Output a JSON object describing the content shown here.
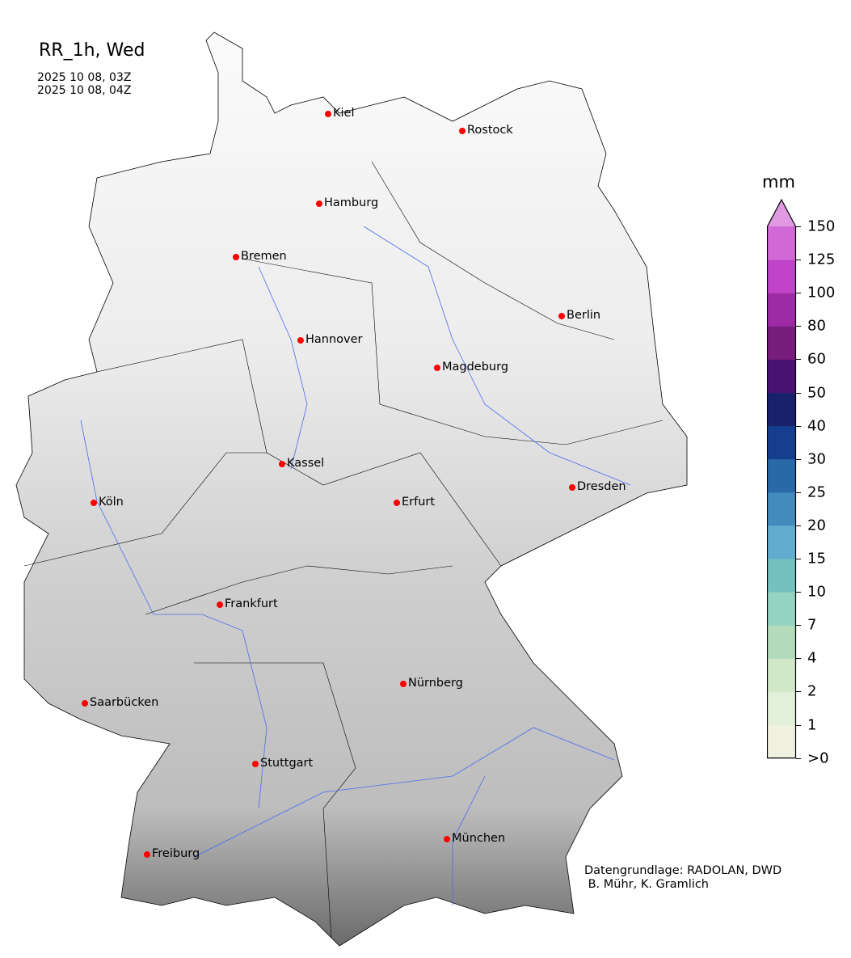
{
  "title": "RR_1h, Wed",
  "dates": [
    "2025 10 08, 03Z",
    "2025 10 08, 04Z"
  ],
  "colorbar": {
    "unit": "mm",
    "ticks": [
      ">0",
      "1",
      "2",
      "4",
      "7",
      "10",
      "15",
      "20",
      "25",
      "30",
      "40",
      "50",
      "60",
      "80",
      "100",
      "125",
      "150"
    ],
    "colors": [
      "#f0f0e0",
      "#e2efd9",
      "#d0e8c8",
      "#b2dbbb",
      "#96d2c0",
      "#73c0c0",
      "#62adcf",
      "#448bbd",
      "#2a69a8",
      "#163e8e",
      "#19216a",
      "#481272",
      "#771e7d",
      "#9e2aa6",
      "#c043c8",
      "#d068d6"
    ],
    "extend_color": "#e09ae2"
  },
  "cities": [
    {
      "name": "Kiel"
    },
    {
      "name": "Rostock"
    },
    {
      "name": "Hamburg"
    },
    {
      "name": "Bremen"
    },
    {
      "name": "Berlin"
    },
    {
      "name": "Hannover"
    },
    {
      "name": "Magdeburg"
    },
    {
      "name": "Kassel"
    },
    {
      "name": "Dresden"
    },
    {
      "name": "Köln"
    },
    {
      "name": "Erfurt"
    },
    {
      "name": "Frankfurt"
    },
    {
      "name": "Nürnberg"
    },
    {
      "name": "Saarbücken"
    },
    {
      "name": "Stuttgart"
    },
    {
      "name": "München"
    },
    {
      "name": "Freiburg"
    }
  ],
  "credits": [
    "Datengrundlage: RADOLAN, DWD",
    " B. Mühr, K. Gramlich"
  ]
}
